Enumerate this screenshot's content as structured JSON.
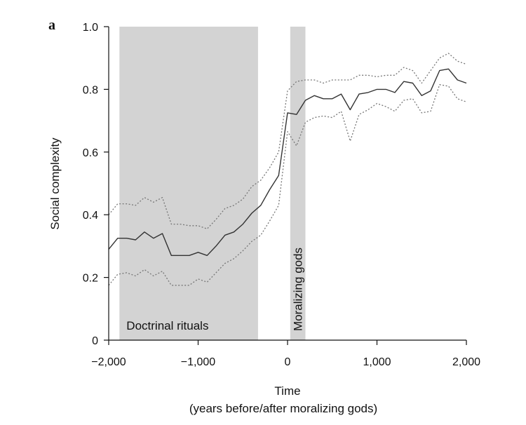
{
  "chart_data": {
    "type": "line",
    "panel_label": "a",
    "xlabel": "Time",
    "xlabel_sub": "(years before/after moralizing gods)",
    "ylabel": "Social complexity",
    "xlim": [
      -2000,
      2000
    ],
    "ylim": [
      0,
      1.0
    ],
    "x_ticks": [
      -2000,
      -1000,
      0,
      1000,
      2000
    ],
    "x_tick_labels": [
      "−2,000",
      "−1,000",
      "0",
      "1,000",
      "2,000"
    ],
    "y_ticks": [
      0,
      0.2,
      0.4,
      0.6,
      0.8,
      1.0
    ],
    "y_tick_labels": [
      "0",
      "0.2",
      "0.4",
      "0.6",
      "0.8",
      "1.0"
    ],
    "grid": false,
    "legend": "none",
    "shaded_regions": [
      {
        "label": "Doctrinal rituals",
        "x_start": -1880,
        "x_end": -330,
        "label_orientation": "horizontal"
      },
      {
        "label": "Moralizing gods",
        "x_start": 30,
        "x_end": 200,
        "label_orientation": "vertical"
      }
    ],
    "colors": {
      "shade": "#d3d3d3",
      "line": "#333333",
      "band": "#777777"
    },
    "series": [
      {
        "role": "mean",
        "style": "solid",
        "x": [
          -2000,
          -1900,
          -1800,
          -1700,
          -1600,
          -1500,
          -1400,
          -1300,
          -1200,
          -1100,
          -1000,
          -900,
          -800,
          -700,
          -600,
          -500,
          -400,
          -300,
          -200,
          -100,
          0,
          100,
          200,
          300,
          400,
          500,
          600,
          700,
          800,
          900,
          1000,
          1100,
          1200,
          1300,
          1400,
          1500,
          1600,
          1700,
          1800,
          1900,
          2000
        ],
        "y": [
          0.29,
          0.325,
          0.325,
          0.32,
          0.345,
          0.325,
          0.34,
          0.27,
          0.27,
          0.27,
          0.28,
          0.27,
          0.3,
          0.335,
          0.345,
          0.37,
          0.405,
          0.43,
          0.48,
          0.525,
          0.725,
          0.72,
          0.765,
          0.78,
          0.77,
          0.77,
          0.785,
          0.735,
          0.785,
          0.79,
          0.8,
          0.8,
          0.79,
          0.825,
          0.82,
          0.78,
          0.795,
          0.86,
          0.865,
          0.83,
          0.82
        ]
      },
      {
        "role": "upper-bound",
        "style": "dotted",
        "x": [
          -2000,
          -1900,
          -1800,
          -1700,
          -1600,
          -1500,
          -1400,
          -1300,
          -1200,
          -1100,
          -1000,
          -900,
          -800,
          -700,
          -600,
          -500,
          -400,
          -300,
          -200,
          -100,
          0,
          100,
          200,
          300,
          400,
          500,
          600,
          700,
          800,
          900,
          1000,
          1100,
          1200,
          1300,
          1400,
          1500,
          1600,
          1700,
          1800,
          1900,
          2000
        ],
        "y": [
          0.4,
          0.435,
          0.435,
          0.43,
          0.455,
          0.44,
          0.455,
          0.37,
          0.37,
          0.365,
          0.365,
          0.355,
          0.385,
          0.42,
          0.43,
          0.45,
          0.49,
          0.51,
          0.55,
          0.6,
          0.795,
          0.825,
          0.83,
          0.83,
          0.82,
          0.83,
          0.83,
          0.83,
          0.845,
          0.845,
          0.84,
          0.845,
          0.845,
          0.87,
          0.86,
          0.82,
          0.86,
          0.9,
          0.915,
          0.89,
          0.88
        ]
      },
      {
        "role": "lower-bound",
        "style": "dotted",
        "x": [
          -2000,
          -1900,
          -1800,
          -1700,
          -1600,
          -1500,
          -1400,
          -1300,
          -1200,
          -1100,
          -1000,
          -900,
          -800,
          -700,
          -600,
          -500,
          -400,
          -300,
          -200,
          -100,
          0,
          100,
          200,
          300,
          400,
          500,
          600,
          700,
          800,
          900,
          1000,
          1100,
          1200,
          1300,
          1400,
          1500,
          1600,
          1700,
          1800,
          1900,
          2000
        ],
        "y": [
          0.175,
          0.21,
          0.215,
          0.205,
          0.225,
          0.205,
          0.22,
          0.175,
          0.175,
          0.175,
          0.195,
          0.185,
          0.215,
          0.245,
          0.26,
          0.285,
          0.315,
          0.335,
          0.38,
          0.43,
          0.665,
          0.62,
          0.695,
          0.71,
          0.715,
          0.71,
          0.73,
          0.635,
          0.72,
          0.735,
          0.755,
          0.745,
          0.73,
          0.765,
          0.77,
          0.725,
          0.73,
          0.815,
          0.81,
          0.77,
          0.76
        ]
      }
    ]
  }
}
